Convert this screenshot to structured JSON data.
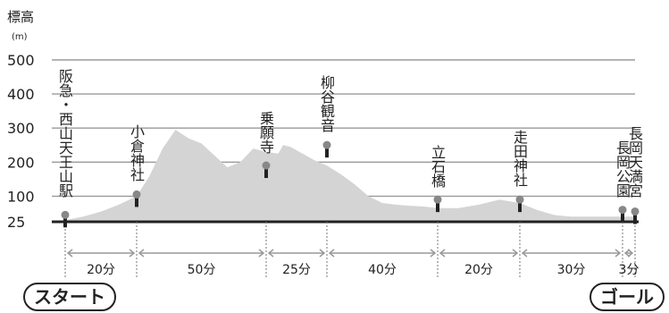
{
  "chart_data": {
    "type": "area",
    "title": "",
    "ylabel": "標高",
    "yunit": "(m)",
    "xlabel": "",
    "ylim": [
      25,
      580
    ],
    "yticks": [
      "500",
      "400",
      "300",
      "200",
      "100",
      "25"
    ],
    "ytick_values": [
      500,
      400,
      300,
      200,
      100,
      25
    ],
    "grid": true,
    "profile": {
      "x_minutes": [
        0,
        5,
        10,
        15,
        20,
        25,
        30,
        35,
        40,
        45,
        50,
        55,
        60,
        65,
        70,
        75,
        77,
        80,
        85,
        90,
        95,
        100,
        105,
        110,
        115,
        120,
        125,
        130,
        135,
        140,
        145,
        150,
        155,
        160,
        165,
        170,
        175,
        180,
        185,
        190,
        195,
        200,
        205,
        210,
        215,
        218,
        221
      ],
      "elevation_m": [
        30,
        40,
        55,
        75,
        100,
        160,
        240,
        295,
        270,
        255,
        220,
        185,
        200,
        240,
        230,
        225,
        250,
        245,
        225,
        205,
        190,
        165,
        135,
        100,
        80,
        75,
        72,
        70,
        65,
        65,
        75,
        90,
        80,
        60,
        45,
        40,
        40,
        40,
        40,
        40,
        40,
        45,
        50,
        45,
        40,
        40,
        40
      ]
    },
    "stations": [
      {
        "name": "阪急・西山天王山駅",
        "minute": 0,
        "elevation": 40
      },
      {
        "name": "小倉神社",
        "minute": 20,
        "elevation": 100
      },
      {
        "name": "乗願寺",
        "minute": 70,
        "elevation": 185
      },
      {
        "name": "柳谷観音",
        "minute": 95,
        "elevation": 245
      },
      {
        "name": "立石橋",
        "minute": 135,
        "elevation": 85
      },
      {
        "name": "走田神社",
        "minute": 155,
        "elevation": 85
      },
      {
        "name": "長岡公園",
        "minute": 185,
        "elevation": 55
      },
      {
        "name": "長岡天満宮",
        "minute": 188,
        "elevation": 50
      }
    ],
    "segments": [
      {
        "label": "20分",
        "minutes": 20
      },
      {
        "label": "50分",
        "minutes": 50
      },
      {
        "label": "25分",
        "minutes": 25
      },
      {
        "label": "40分",
        "minutes": 40
      },
      {
        "label": "20分",
        "minutes": 20
      },
      {
        "label": "30分",
        "minutes": 30
      },
      {
        "label": "3分",
        "minutes": 3
      }
    ],
    "start_label": "スタート",
    "goal_label": "ゴール",
    "colors": {
      "area": "#d4d4d4",
      "axis": "#222222",
      "grid": "#9a9a9a",
      "marker": "#888888",
      "arrow": "#999999"
    }
  }
}
